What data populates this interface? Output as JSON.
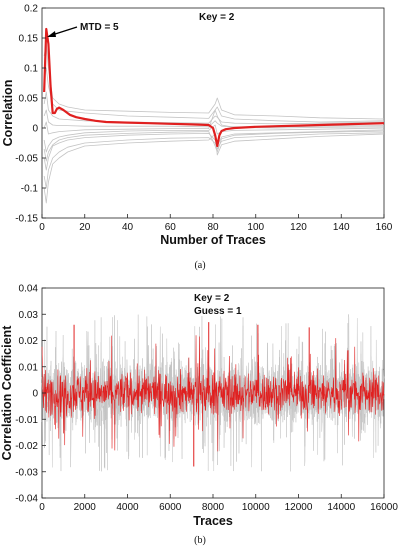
{
  "chart_data": [
    {
      "type": "line",
      "panel_caption": "(a)",
      "xlabel": "Number of Traces",
      "ylabel": "Correlation",
      "xlim": [
        0,
        160
      ],
      "ylim": [
        -0.15,
        0.2
      ],
      "xticks": [
        0,
        20,
        40,
        60,
        80,
        100,
        120,
        140,
        160
      ],
      "yticks": [
        -0.15,
        -0.1,
        -0.05,
        0,
        0.05,
        0.1,
        0.15,
        0.2
      ],
      "tick_labels_y": [
        "-0.15",
        "-0.1",
        "-0.05",
        "0",
        "0.05",
        "0.1",
        "0.15",
        "0.2"
      ],
      "annotations": {
        "key": "Key = 2",
        "mtd": "MTD = 5"
      },
      "mtd_point": [
        2,
        0.165
      ],
      "grid": false,
      "series_colors": {
        "highlight": "#e02020",
        "others": "#c4c4c4"
      },
      "series": [
        {
          "role": "highlight",
          "x": [
            1,
            2,
            3,
            4,
            5,
            6,
            7,
            8,
            10,
            13,
            16,
            20,
            25,
            30,
            40,
            50,
            60,
            70,
            78,
            80,
            81,
            82,
            83,
            84,
            86,
            90,
            100,
            110,
            120,
            130,
            140,
            150,
            160
          ],
          "y": [
            0.06,
            0.165,
            0.14,
            0.07,
            0.025,
            0.025,
            0.032,
            0.034,
            0.03,
            0.022,
            0.018,
            0.015,
            0.012,
            0.01,
            0.009,
            0.008,
            0.007,
            0.006,
            0.005,
            0.0,
            -0.012,
            -0.03,
            -0.012,
            -0.005,
            -0.002,
            0.0,
            0.002,
            0.003,
            0.004,
            0.005,
            0.006,
            0.007,
            0.008
          ]
        },
        {
          "role": "other",
          "x": [
            1,
            2,
            3,
            5,
            8,
            12,
            20,
            40,
            60,
            78,
            81,
            82,
            84,
            90,
            110,
            130,
            160
          ],
          "y": [
            0.12,
            0.14,
            0.1,
            0.05,
            0.04,
            0.035,
            0.03,
            0.028,
            0.026,
            0.025,
            0.04,
            0.05,
            0.03,
            0.022,
            0.02,
            0.017,
            0.015
          ]
        },
        {
          "role": "other",
          "x": [
            1,
            2,
            3,
            5,
            8,
            12,
            20,
            40,
            60,
            78,
            81,
            82,
            84,
            90,
            110,
            130,
            160
          ],
          "y": [
            0.08,
            0.1,
            0.07,
            0.04,
            0.03,
            0.028,
            0.025,
            0.02,
            0.018,
            0.016,
            0.03,
            0.035,
            0.02,
            0.015,
            0.012,
            0.01,
            0.012
          ]
        },
        {
          "role": "other",
          "x": [
            1,
            2,
            3,
            5,
            8,
            12,
            20,
            40,
            60,
            78,
            81,
            82,
            84,
            90,
            110,
            130,
            160
          ],
          "y": [
            0.04,
            0.06,
            0.03,
            0.02,
            0.015,
            0.014,
            0.012,
            0.01,
            0.009,
            0.008,
            0.02,
            0.018,
            0.01,
            0.008,
            0.007,
            0.008,
            0.01
          ]
        },
        {
          "role": "other",
          "x": [
            1,
            2,
            3,
            5,
            8,
            12,
            20,
            40,
            60,
            78,
            81,
            82,
            84,
            90,
            110,
            130,
            160
          ],
          "y": [
            0.02,
            0.03,
            0.01,
            0.005,
            0.004,
            0.004,
            0.003,
            0.003,
            0.003,
            0.002,
            0.012,
            0.008,
            0.003,
            0.002,
            0.002,
            0.003,
            0.004
          ]
        },
        {
          "role": "other",
          "x": [
            1,
            2,
            3,
            5,
            8,
            12,
            20,
            40,
            60,
            78,
            81,
            82,
            84,
            90,
            110,
            130,
            160
          ],
          "y": [
            -0.02,
            -0.04,
            -0.03,
            -0.02,
            -0.015,
            -0.012,
            -0.008,
            -0.005,
            -0.004,
            -0.004,
            0.005,
            -0.01,
            -0.006,
            -0.004,
            -0.003,
            -0.002,
            0.0
          ]
        },
        {
          "role": "other",
          "x": [
            1,
            2,
            3,
            5,
            8,
            12,
            20,
            40,
            60,
            78,
            81,
            82,
            84,
            90,
            110,
            130,
            160
          ],
          "y": [
            -0.05,
            -0.07,
            -0.05,
            -0.03,
            -0.025,
            -0.02,
            -0.016,
            -0.012,
            -0.01,
            -0.009,
            -0.02,
            -0.03,
            -0.015,
            -0.01,
            -0.008,
            -0.006,
            -0.003
          ]
        },
        {
          "role": "other",
          "x": [
            1,
            2,
            3,
            5,
            8,
            12,
            20,
            40,
            60,
            78,
            81,
            82,
            84,
            90,
            110,
            130,
            160
          ],
          "y": [
            -0.08,
            -0.1,
            -0.07,
            -0.05,
            -0.04,
            -0.032,
            -0.025,
            -0.02,
            -0.017,
            -0.016,
            -0.025,
            -0.035,
            -0.022,
            -0.016,
            -0.013,
            -0.01,
            -0.008
          ]
        },
        {
          "role": "other",
          "x": [
            1,
            2,
            3,
            5,
            8,
            12,
            20,
            40,
            60,
            78,
            81,
            82,
            84,
            90,
            110,
            130,
            160
          ],
          "y": [
            -0.1,
            -0.125,
            -0.09,
            -0.06,
            -0.05,
            -0.04,
            -0.03,
            -0.025,
            -0.022,
            -0.02,
            -0.01,
            -0.045,
            -0.028,
            -0.022,
            -0.018,
            -0.014,
            -0.01
          ]
        },
        {
          "role": "other",
          "x": [
            1,
            2,
            3,
            5,
            8,
            12,
            20,
            40,
            60,
            78,
            81,
            82,
            84,
            90,
            110,
            130,
            160
          ],
          "y": [
            0.0,
            0.01,
            -0.01,
            -0.008,
            -0.006,
            -0.005,
            -0.003,
            -0.002,
            -0.001,
            -0.001,
            0.03,
            0.02,
            0.005,
            0.001,
            0.0,
            0.001,
            0.002
          ]
        },
        {
          "role": "other",
          "x": [
            1,
            2,
            3,
            5,
            8,
            12,
            20,
            40,
            60,
            78,
            81,
            82,
            84,
            90,
            110,
            130,
            160
          ],
          "y": [
            -0.035,
            -0.055,
            -0.04,
            -0.028,
            -0.02,
            -0.016,
            -0.012,
            -0.009,
            -0.007,
            -0.006,
            -0.03,
            -0.04,
            -0.018,
            -0.012,
            -0.009,
            -0.007,
            -0.005
          ]
        }
      ]
    },
    {
      "type": "line",
      "panel_caption": "(b)",
      "xlabel": "Traces",
      "ylabel": "Correlation Coefficient",
      "xlim": [
        0,
        16000
      ],
      "ylim": [
        -0.04,
        0.04
      ],
      "xticks": [
        0,
        2000,
        4000,
        6000,
        8000,
        10000,
        12000,
        14000,
        16000
      ],
      "yticks": [
        -0.04,
        -0.03,
        -0.02,
        -0.01,
        0,
        0.01,
        0.02,
        0.03,
        0.04
      ],
      "tick_labels_y": [
        "-0.04",
        "-0.03",
        "-0.02",
        "-0.01",
        "0",
        "0.01",
        "0.02",
        "0.03",
        "0.04"
      ],
      "annotations": {
        "key": "Key = 2",
        "guess": "Guess = 1"
      },
      "grid": false,
      "series_colors": {
        "highlight": "#e02020",
        "others": "#c4c4c4"
      },
      "noise_envelope": {
        "gray_band": 0.012,
        "gray_spikes": 0.03,
        "red_band": 0.008,
        "red_spikes": 0.028
      },
      "notable_peaks": [
        {
          "x": 1500,
          "y": 0.026
        },
        {
          "x": 7100,
          "y": -0.028
        },
        {
          "x": 7800,
          "y": 0.027
        },
        {
          "x": 10100,
          "y": 0.026
        },
        {
          "x": 12500,
          "y": 0.025
        }
      ]
    }
  ]
}
